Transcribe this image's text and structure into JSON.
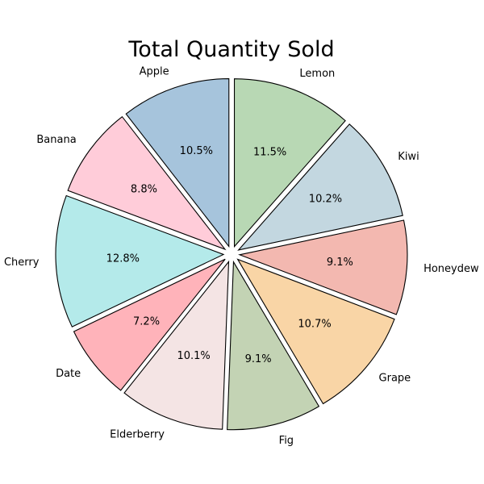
{
  "chart_data": {
    "type": "pie",
    "title": "Total Quantity Sold",
    "categories": [
      "Apple",
      "Banana",
      "Cherry",
      "Date",
      "Elderberry",
      "Fig",
      "Grape",
      "Honeydew",
      "Kiwi",
      "Lemon"
    ],
    "values": [
      10.5,
      8.8,
      12.8,
      7.2,
      10.1,
      9.1,
      10.7,
      9.1,
      10.2,
      11.5
    ],
    "value_labels": [
      "10.5%",
      "8.8%",
      "12.8%",
      "7.2%",
      "10.1%",
      "9.1%",
      "10.7%",
      "9.1%",
      "10.2%",
      "11.5%"
    ],
    "colors": [
      "#a6c4dc",
      "#ffccd9",
      "#b4eaea",
      "#ffb3ba",
      "#f4e4e4",
      "#c3d3b4",
      "#f9d5a6",
      "#f3b8b0",
      "#c3d7e0",
      "#b8d8b4"
    ],
    "start_angle_deg": 90,
    "direction": "counterclockwise",
    "exploded": true,
    "legend": "none"
  }
}
